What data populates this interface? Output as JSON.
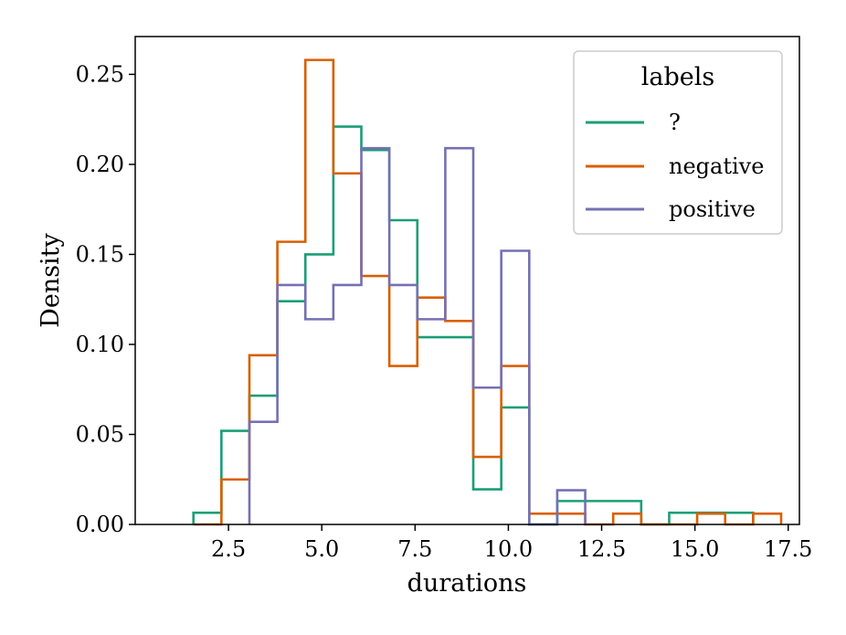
{
  "chart_data": {
    "type": "histogram-step",
    "xlabel": "durations",
    "ylabel": "Density",
    "xlim": [
      0.0,
      17.8
    ],
    "ylim": [
      0.0,
      0.271
    ],
    "xticks": [
      2.5,
      5.0,
      7.5,
      10.0,
      12.5,
      15.0,
      17.5
    ],
    "xtick_labels": [
      "2.5",
      "5.0",
      "7.5",
      "10.0",
      "12.5",
      "15.0",
      "17.5"
    ],
    "yticks": [
      0.0,
      0.05,
      0.1,
      0.15,
      0.2,
      0.25
    ],
    "ytick_labels": [
      "0.00",
      "0.05",
      "0.10",
      "0.15",
      "0.20",
      "0.25"
    ],
    "legend": {
      "title": "labels",
      "position": "top-right"
    },
    "series": [
      {
        "name": "?",
        "color": "#1b9e77",
        "edges": [
          1.56,
          2.31,
          3.06,
          3.81,
          4.56,
          5.31,
          6.06,
          6.81,
          7.56,
          8.31,
          9.06,
          9.81,
          10.56,
          11.31,
          12.06,
          12.81,
          13.56,
          14.31,
          15.06,
          15.81,
          16.56
        ],
        "values": [
          0.0065,
          0.052,
          0.0715,
          0.124,
          0.15,
          0.221,
          0.208,
          0.169,
          0.104,
          0.104,
          0.0195,
          0.065,
          0.0,
          0.013,
          0.013,
          0.013,
          0.0,
          0.0065,
          0.0065,
          0.0065
        ]
      },
      {
        "name": "negative",
        "color": "#d95f02",
        "edges": [
          1.56,
          2.31,
          3.06,
          3.81,
          4.56,
          5.31,
          6.06,
          6.81,
          7.56,
          8.31,
          9.06,
          9.81,
          10.56,
          11.31,
          12.06,
          12.81,
          13.56,
          14.31,
          15.06,
          15.81,
          16.56,
          17.31
        ],
        "values": [
          0.0,
          0.025,
          0.094,
          0.157,
          0.258,
          0.195,
          0.138,
          0.088,
          0.126,
          0.113,
          0.0375,
          0.088,
          0.006,
          0.006,
          0.0,
          0.006,
          0.0,
          0.0,
          0.006,
          0.0,
          0.006
        ]
      },
      {
        "name": "positive",
        "color": "#7570b3",
        "edges": [
          3.06,
          3.81,
          4.56,
          5.31,
          6.06,
          6.81,
          7.56,
          8.31,
          9.06,
          9.81,
          10.56,
          11.31,
          12.06
        ],
        "values": [
          0.057,
          0.133,
          0.114,
          0.133,
          0.209,
          0.133,
          0.114,
          0.209,
          0.076,
          0.152,
          0.0,
          0.019
        ]
      }
    ]
  }
}
